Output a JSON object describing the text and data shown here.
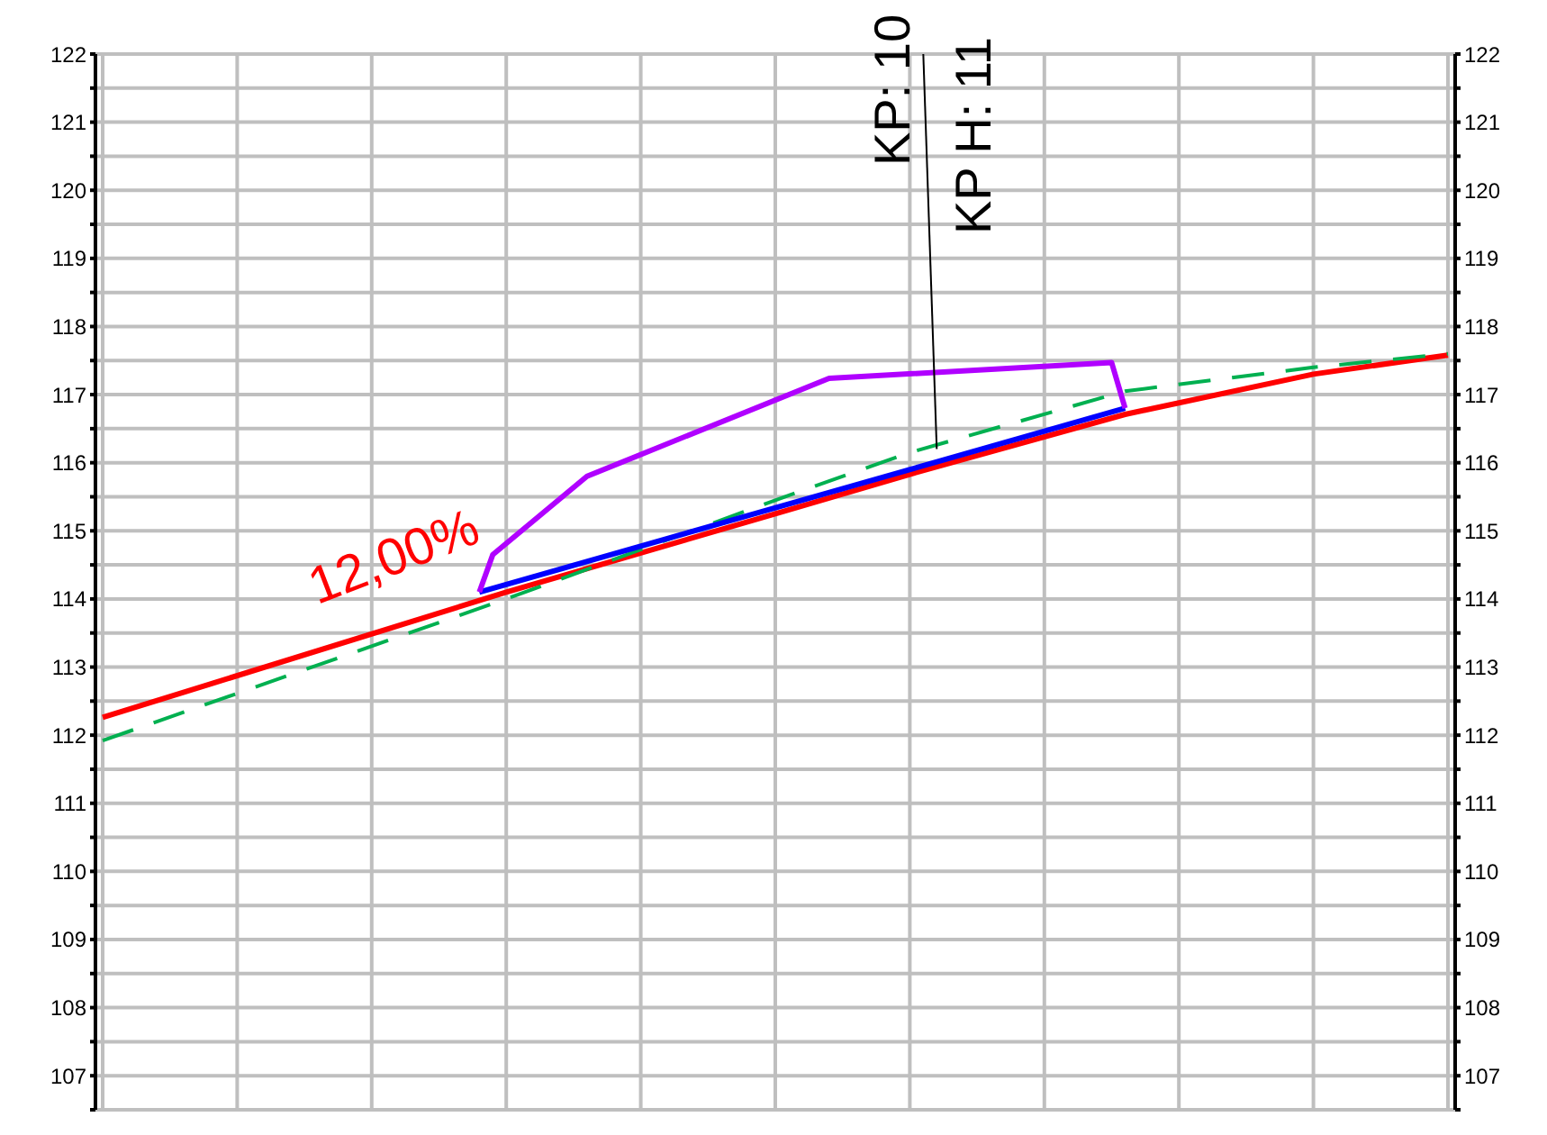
{
  "chart_data": {
    "type": "line",
    "categories": [
      null,
      null,
      null,
      null,
      null,
      null,
      null,
      null,
      null,
      null,
      null,
      null,
      null,
      null,
      null,
      null,
      null,
      null,
      null,
      null,
      null,
      null,
      null,
      null,
      null,
      null,
      null,
      null,
      null,
      null,
      null,
      null,
      null,
      null,
      null,
      null,
      null,
      null,
      null,
      null,
      null,
      null,
      null,
      null,
      null,
      null,
      null,
      null,
      null,
      null,
      null,
      null,
      null,
      null,
      null,
      null,
      null,
      null,
      null,
      null,
      null,
      null,
      null,
      null,
      null,
      null,
      null,
      null,
      null,
      null,
      null,
      null,
      null,
      null,
      null,
      null,
      null,
      null,
      null,
      null,
      null,
      null,
      null,
      null,
      null,
      null,
      null,
      null,
      null,
      null,
      null,
      null,
      null,
      null,
      null,
      null,
      null,
      null,
      null,
      null,
      null
    ],
    "ylim": [
      106.5,
      122
    ],
    "yticks": [
      {
        "value": 106.5,
        "label": null
      },
      107,
      {
        "value": 107.5,
        "label": null
      },
      108,
      {
        "value": 108.5,
        "label": null
      },
      109,
      {
        "value": 109.5,
        "label": null
      },
      110,
      {
        "value": 110.5,
        "label": null
      },
      111,
      {
        "value": 111.5,
        "label": null
      },
      112,
      {
        "value": 112.5,
        "label": null
      },
      113,
      {
        "value": 113.5,
        "label": null
      },
      114,
      {
        "value": 114.5,
        "label": null
      },
      115,
      {
        "value": 115.5,
        "label": null
      },
      116,
      {
        "value": 116.5,
        "label": null
      },
      117,
      {
        "value": 117.5,
        "label": null
      },
      118,
      {
        "value": 118.5,
        "label": null
      },
      119,
      {
        "value": 119.5,
        "label": null
      },
      120,
      {
        "value": 120.5,
        "label": null
      },
      121,
      {
        "value": 121.5,
        "label": null
      },
      122
    ],
    "y2lim": [
      106.5,
      122
    ],
    "y2ticks": [
      {
        "value": 106.5,
        "label": null
      },
      107,
      {
        "value": 107.5,
        "label": null
      },
      108,
      {
        "value": 108.5,
        "label": null
      },
      109,
      {
        "value": 109.5,
        "label": null
      },
      110,
      {
        "value": 110.5,
        "label": null
      },
      111,
      {
        "value": 111.5,
        "label": null
      },
      112,
      {
        "value": 112.5,
        "label": null
      },
      113,
      {
        "value": 113.5,
        "label": null
      },
      114,
      {
        "value": 114.5,
        "label": null
      },
      115,
      {
        "value": 115.5,
        "label": null
      },
      116,
      {
        "value": 116.5,
        "label": null
      },
      117,
      {
        "value": 117.5,
        "label": null
      },
      118,
      {
        "value": 118.5,
        "label": null
      },
      119,
      {
        "value": 119.5,
        "label": null
      },
      120,
      {
        "value": 120.5,
        "label": null
      },
      121,
      {
        "value": 121.5,
        "label": null
      },
      122
    ],
    "grid": true,
    "series": [
      {
        "color": "#ff0000",
        "values": [
          112.26,
          null,
          null,
          null,
          null,
          null,
          null,
          null,
          null,
          null,
          null,
          null,
          null,
          null,
          null,
          null,
          null,
          null,
          null,
          null,
          null,
          null,
          null,
          null,
          null,
          null,
          null,
          null,
          null,
          null,
          114.1,
          null,
          null,
          null,
          null,
          null,
          null,
          null,
          null,
          null,
          null,
          null,
          null,
          null,
          null,
          null,
          null,
          null,
          null,
          null,
          115.25,
          null,
          null,
          null,
          null,
          null,
          null,
          null,
          null,
          null,
          115.83,
          null,
          null,
          null,
          null,
          null,
          null,
          null,
          null,
          null,
          null,
          null,
          null,
          null,
          null,
          null,
          116.71,
          null,
          null,
          null,
          null,
          null,
          null,
          null,
          null,
          null,
          null,
          null,
          null,
          null,
          117.3,
          null,
          null,
          null,
          null,
          null,
          null,
          null,
          null,
          null,
          117.58
        ]
      },
      {
        "color": "#00b050",
        "line_style": "dashed",
        "values": [
          111.92,
          null,
          null,
          null,
          null,
          null,
          null,
          null,
          null,
          null,
          null,
          null,
          null,
          null,
          null,
          null,
          null,
          null,
          null,
          null,
          null,
          null,
          null,
          null,
          null,
          null,
          null,
          null,
          null,
          null,
          114.0,
          null,
          null,
          null,
          null,
          null,
          null,
          null,
          null,
          null,
          null,
          null,
          null,
          null,
          null,
          null,
          null,
          null,
          null,
          null,
          115.45,
          null,
          null,
          null,
          null,
          null,
          null,
          null,
          null,
          null,
          116.15,
          null,
          null,
          null,
          null,
          null,
          null,
          null,
          null,
          null,
          null,
          null,
          null,
          null,
          null,
          null,
          117.05,
          null,
          null,
          null,
          null,
          null,
          null,
          null,
          null,
          null,
          null,
          null,
          null,
          null,
          117.4,
          null,
          null,
          null,
          null,
          null,
          null,
          null,
          null,
          null,
          117.6
        ]
      },
      {
        "color": "#0000ff",
        "values": [
          null,
          null,
          null,
          null,
          null,
          null,
          null,
          null,
          null,
          null,
          null,
          null,
          null,
          null,
          null,
          null,
          null,
          null,
          null,
          null,
          null,
          null,
          null,
          null,
          null,
          null,
          null,
          null,
          114.1,
          null,
          null,
          null,
          null,
          null,
          null,
          null,
          null,
          null,
          null,
          null,
          null,
          null,
          null,
          null,
          null,
          null,
          null,
          null,
          null,
          null,
          null,
          null,
          null,
          null,
          null,
          null,
          null,
          null,
          null,
          null,
          null,
          null,
          null,
          null,
          null,
          null,
          null,
          null,
          null,
          null,
          null,
          null,
          null,
          null,
          null,
          null,
          116.8,
          null,
          null,
          null,
          null,
          null,
          null,
          null,
          null,
          null,
          null,
          null,
          null,
          null,
          null,
          null,
          null,
          null,
          null,
          null,
          null,
          null,
          null,
          null,
          null
        ]
      },
      {
        "color": "#b000ff",
        "values": [
          null,
          null,
          null,
          null,
          null,
          null,
          null,
          null,
          null,
          null,
          null,
          null,
          null,
          null,
          null,
          null,
          null,
          null,
          null,
          null,
          null,
          null,
          null,
          null,
          null,
          null,
          null,
          null,
          114.1,
          114.65,
          null,
          null,
          null,
          null,
          null,
          null,
          115.8,
          null,
          null,
          null,
          null,
          null,
          null,
          null,
          null,
          null,
          null,
          null,
          null,
          null,
          null,
          null,
          null,
          null,
          117.24,
          null,
          null,
          null,
          null,
          null,
          null,
          null,
          null,
          null,
          null,
          null,
          null,
          null,
          null,
          null,
          null,
          null,
          null,
          null,
          null,
          117.47,
          116.8,
          null,
          null,
          null,
          null,
          null,
          null,
          null,
          null,
          null,
          null,
          null,
          null,
          null,
          null,
          null,
          null,
          null,
          null,
          null,
          null,
          null,
          null,
          null,
          null
        ]
      },
      {
        "color": "#000000",
        "values": [
          null,
          null,
          null,
          null,
          null,
          null,
          null,
          null,
          null,
          null,
          null,
          null,
          null,
          null,
          null,
          null,
          null,
          null,
          null,
          null,
          null,
          null,
          null,
          null,
          null,
          null,
          null,
          null,
          null,
          null,
          null,
          null,
          null,
          null,
          null,
          null,
          null,
          null,
          null,
          null,
          null,
          null,
          null,
          null,
          null,
          null,
          null,
          null,
          null,
          null,
          null,
          null,
          null,
          null,
          null,
          null,
          null,
          null,
          null,
          null,
          null,
          122,
          116.2,
          null,
          null,
          null,
          null,
          null,
          null,
          null,
          null,
          null,
          null,
          null,
          null,
          null,
          null,
          null,
          null,
          null,
          null,
          null,
          null,
          null,
          null,
          null,
          null,
          null,
          null,
          null,
          null,
          null,
          null,
          null,
          null,
          null,
          null,
          null,
          null,
          null,
          null
        ]
      }
    ],
    "annotations": [
      "12,00%",
      "KP: 10",
      "KP H: 11"
    ]
  }
}
